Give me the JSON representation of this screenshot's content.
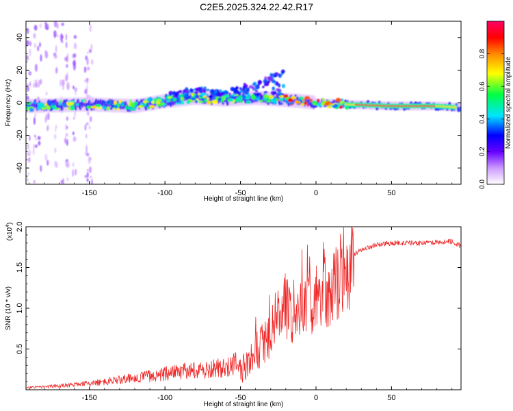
{
  "figure_title": "C2E5.2025.324.22.42.R17",
  "chart_data": [
    {
      "type": "heatmap",
      "title": "C2E5.2025.324.22.42.R17",
      "xlabel": "Height of straight line (km)",
      "ylabel": "Frequency (Hz)",
      "xlim": [
        -192,
        96
      ],
      "ylim": [
        -50,
        50
      ],
      "xticks": [
        -150,
        -100,
        -50,
        0,
        50
      ],
      "xtick_labels": [
        "-150",
        "-100",
        "-50",
        "0",
        "50"
      ],
      "yticks": [
        -40,
        -20,
        0,
        20,
        40
      ],
      "ytick_labels": [
        "-40",
        "-20",
        "0",
        "20",
        "40"
      ],
      "colorbar": {
        "label": "Normalized spectral amplitude",
        "range": [
          0,
          1
        ],
        "ticks": [
          0.0,
          0.2,
          0.4,
          0.6,
          0.8
        ],
        "tick_labels": [
          "0.0",
          "0.2",
          "0.4",
          "0.6",
          "0.8"
        ],
        "colors": [
          "#ffffff",
          "#cc99ff",
          "#6600ff",
          "#0000ff",
          "#00e5ff",
          "#00ff44",
          "#ffff00",
          "#ff8800",
          "#ff0000",
          "#ff0066"
        ]
      },
      "ridge": {
        "x": [
          -192,
          -150,
          -120,
          -100,
          -80,
          -60,
          -40,
          -25,
          -10,
          0,
          20,
          50,
          80,
          96
        ],
        "frequency_hz": [
          -2,
          -1,
          -2,
          1,
          3,
          2,
          3,
          2,
          1,
          0,
          -1,
          -2,
          -2,
          -3
        ]
      },
      "spread_band": {
        "x": [
          -100,
          -80,
          -60,
          -40,
          -30,
          -20
        ],
        "upper_hz": [
          5,
          10,
          8,
          13,
          18,
          20
        ]
      }
    },
    {
      "type": "line",
      "xlabel": "Height of straight line (km)",
      "ylabel": "SNR (10 * v/v)",
      "scale_label": "(x10",
      "scale_exponent": "4",
      "xlim": [
        -192,
        96
      ],
      "ylim": [
        0,
        2.0
      ],
      "xticks": [
        -150,
        -100,
        -50,
        0,
        50
      ],
      "xtick_labels": [
        "-150",
        "-100",
        "-50",
        "0",
        "50"
      ],
      "yticks": [
        0.5,
        1.0,
        1.5,
        2.0
      ],
      "ytick_labels": [
        "0.5",
        "1.0",
        "1.5",
        "2.0"
      ],
      "color": "#ee2222",
      "series": [
        {
          "name": "SNR",
          "x": [
            -192,
            -180,
            -160,
            -140,
            -120,
            -100,
            -80,
            -60,
            -50,
            -40,
            -30,
            -25,
            -20,
            -15,
            -10,
            -5,
            0,
            5,
            10,
            15,
            20,
            25,
            30,
            40,
            50,
            60,
            70,
            80,
            90,
            96
          ],
          "y": [
            0.02,
            0.03,
            0.05,
            0.08,
            0.12,
            0.16,
            0.2,
            0.22,
            0.28,
            0.45,
            0.75,
            0.95,
            1.1,
            1.0,
            1.05,
            1.15,
            1.2,
            1.3,
            1.25,
            1.45,
            1.55,
            1.65,
            1.72,
            1.78,
            1.8,
            1.8,
            1.8,
            1.81,
            1.82,
            1.76
          ]
        }
      ]
    }
  ]
}
